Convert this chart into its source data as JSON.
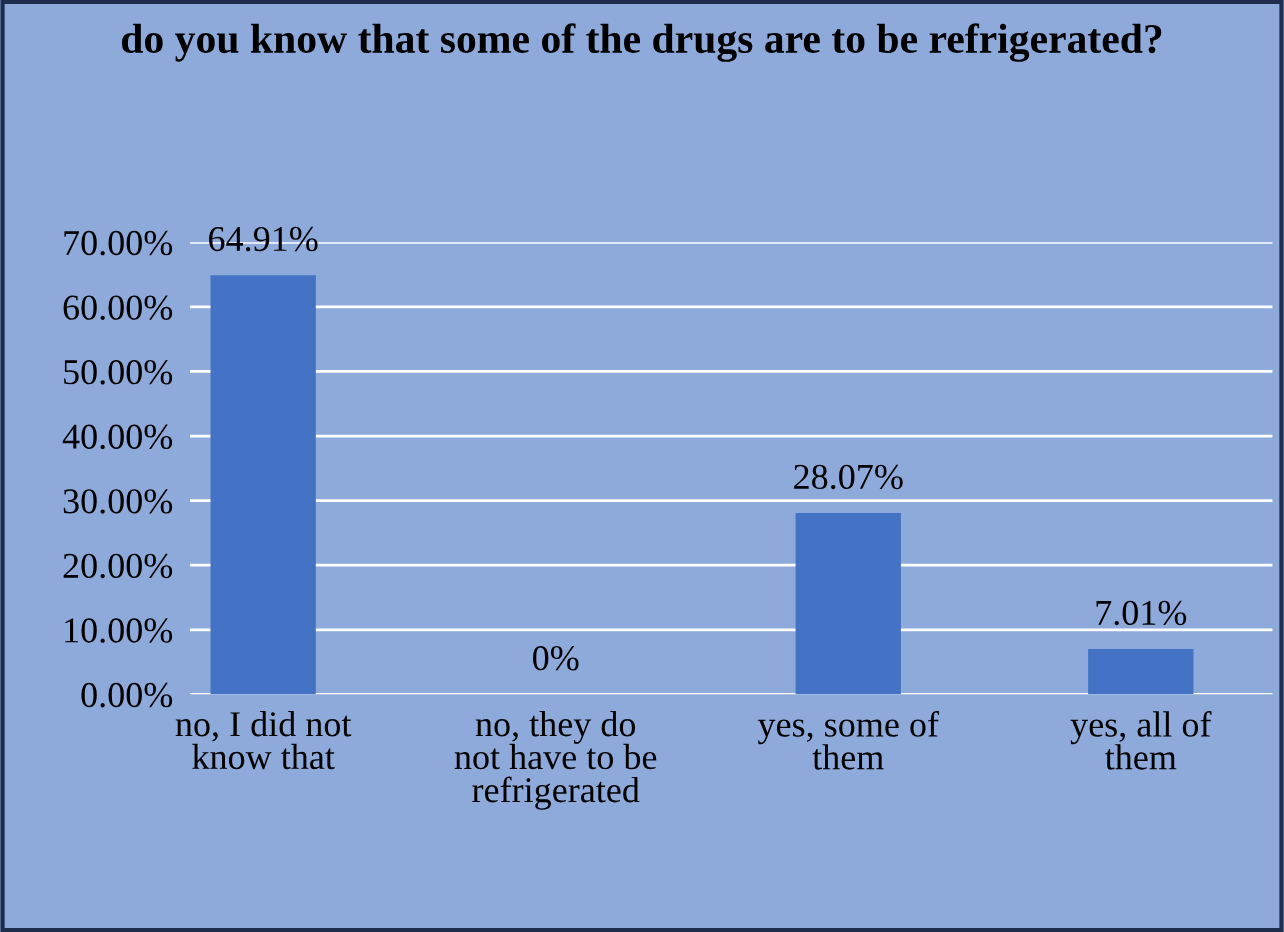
{
  "chart_data": {
    "type": "bar",
    "title": "do you know that some of the drugs are to be refrigerated?",
    "categories": [
      "no, I did not\nknow that",
      "no, they do\nnot have to be\nrefrigerated",
      "yes, some of\nthem",
      "yes, all of\nthem"
    ],
    "values": [
      64.91,
      0,
      28.07,
      7.01
    ],
    "value_labels": [
      "64.91%",
      "0%",
      "28.07%",
      "7.01%"
    ],
    "color": "#4472c4",
    "ylim": [
      0,
      70
    ],
    "yticks": [
      {
        "value": 0,
        "label": "0.00%"
      },
      {
        "value": 10,
        "label": "10.00%"
      },
      {
        "value": 20,
        "label": "20.00%"
      },
      {
        "value": 30,
        "label": "30.00%"
      },
      {
        "value": 40,
        "label": "40.00%"
      },
      {
        "value": 50,
        "label": "50.00%"
      },
      {
        "value": 60,
        "label": "60.00%"
      },
      {
        "value": 70,
        "label": "70.00%"
      }
    ],
    "grid": "y",
    "legend": false
  }
}
